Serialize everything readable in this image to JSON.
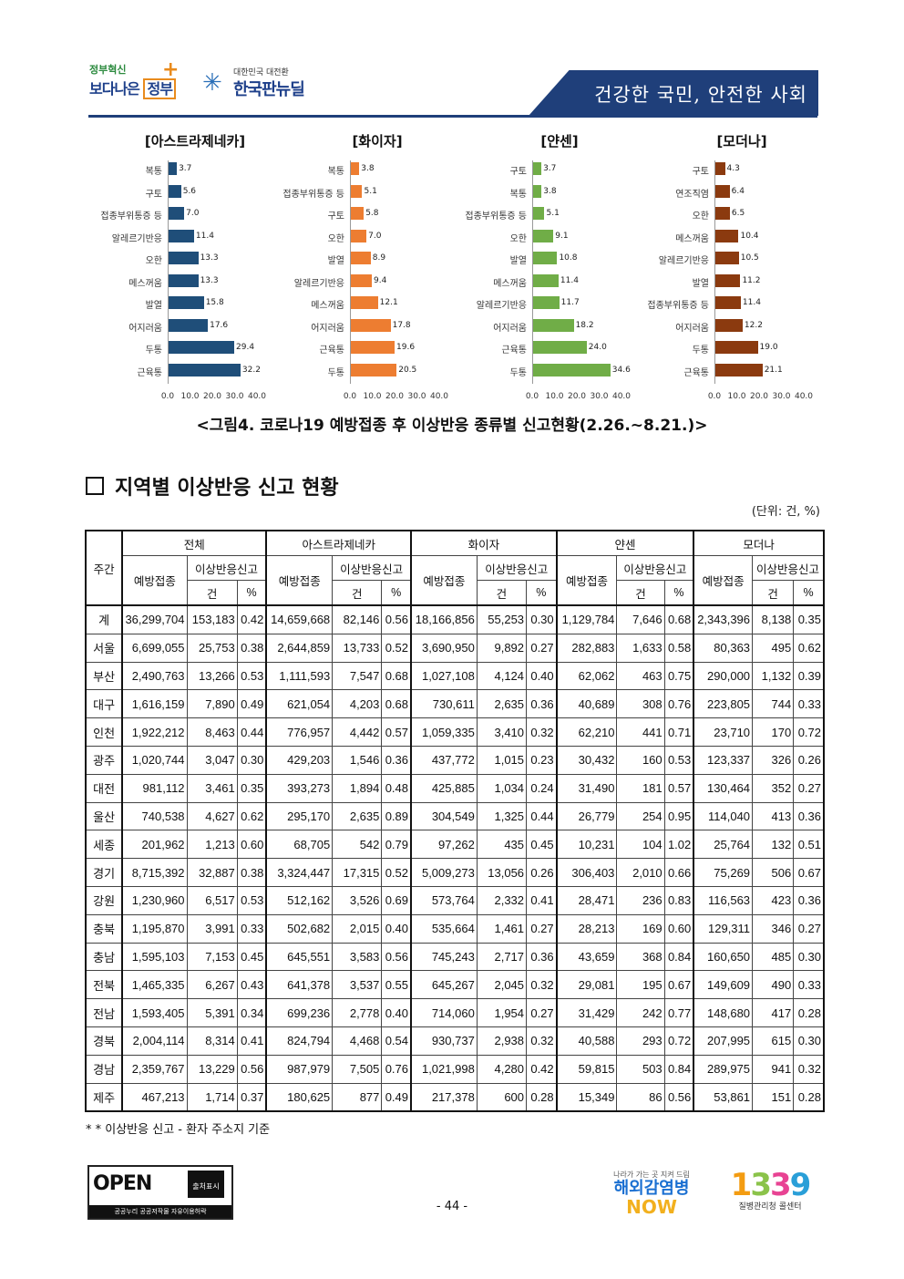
{
  "header": {
    "logo1_line1": "정부혁신",
    "logo1_line2a": "보다나은",
    "logo1_line2b": "정부",
    "logo2_line1": "대한민국 대전환",
    "logo2_line2": "한국판뉴딜",
    "banner": "건강한 국민, 안전한 사회"
  },
  "chart_data": [
    {
      "type": "bar",
      "title": "[아스트라제네카]",
      "color": "#1f4e79",
      "categories": [
        "복통",
        "구토",
        "접종부위통증 등",
        "알레르기반응",
        "오한",
        "메스꺼움",
        "발열",
        "어지러움",
        "두통",
        "근육통"
      ],
      "values": [
        3.7,
        5.6,
        7.0,
        11.4,
        13.3,
        13.3,
        15.8,
        17.6,
        29.4,
        32.2
      ],
      "value_labels": [
        "3.7",
        "5.6",
        "7.0",
        "11.4",
        "13.3",
        "13.3",
        "15.8",
        "17.6",
        "29.4",
        "32.2"
      ],
      "xlim": [
        0,
        40
      ],
      "xticks": [
        "0.0",
        "10.0",
        "20.0",
        "30.0",
        "40.0"
      ]
    },
    {
      "type": "bar",
      "title": "[화이자]",
      "color": "#ed7d31",
      "categories": [
        "복통",
        "접종부위통증 등",
        "구토",
        "오한",
        "발열",
        "알레르기반응",
        "메스꺼움",
        "어지러움",
        "근육통",
        "두통"
      ],
      "values": [
        3.8,
        5.1,
        5.8,
        7.0,
        8.9,
        9.4,
        12.1,
        17.8,
        19.6,
        20.5
      ],
      "value_labels": [
        "3.8",
        "5.1",
        "5.8",
        "7.0",
        "8.9",
        "9.4",
        "12.1",
        "17.8",
        "19.6",
        "20.5"
      ],
      "xlim": [
        0,
        40
      ],
      "xticks": [
        "0.0",
        "10.0",
        "20.0",
        "30.0",
        "40.0"
      ]
    },
    {
      "type": "bar",
      "title": "[얀센]",
      "color": "#70ad47",
      "categories": [
        "구토",
        "복통",
        "접종부위통증 등",
        "오한",
        "발열",
        "메스꺼움",
        "알레르기반응",
        "어지러움",
        "근육통",
        "두통"
      ],
      "values": [
        3.7,
        3.8,
        5.1,
        9.1,
        10.8,
        11.4,
        11.7,
        18.2,
        24.0,
        34.6
      ],
      "value_labels": [
        "3.7",
        "3.8",
        "5.1",
        "9.1",
        "10.8",
        "11.4",
        "11.7",
        "18.2",
        "24.0",
        "34.6"
      ],
      "xlim": [
        0,
        40
      ],
      "xticks": [
        "0.0",
        "10.0",
        "20.0",
        "30.0",
        "40.0"
      ]
    },
    {
      "type": "bar",
      "title": "[모더나]",
      "color": "#8b3a0f",
      "categories": [
        "구토",
        "연조직염",
        "오한",
        "메스꺼움",
        "알레르기반응",
        "발열",
        "접종부위통증 등",
        "어지러움",
        "두통",
        "근육통"
      ],
      "values": [
        4.3,
        6.4,
        6.5,
        10.4,
        10.5,
        11.2,
        11.4,
        12.2,
        19.0,
        21.1
      ],
      "value_labels": [
        "4.3",
        "6.4",
        "6.5",
        "10.4",
        "10.5",
        "11.2",
        "11.4",
        "12.2",
        "19.0",
        "21.1"
      ],
      "xlim": [
        0,
        40
      ],
      "xticks": [
        "0.0",
        "10.0",
        "20.0",
        "30.0",
        "40.0"
      ]
    }
  ],
  "figure_caption": "<그림4. 코로나19 예방접종 후 이상반응 종류별 신고현황(2.26.~8.21.)>",
  "section_title": "지역별 이상반응 신고 현황",
  "unit": "(단위: 건, %)",
  "table": {
    "corner": "주간",
    "groups": [
      "전체",
      "아스트라제네카",
      "화이자",
      "얀센",
      "모더나"
    ],
    "sub_vacc": "예방접종",
    "sub_report": "이상반응신고",
    "sub_count": "건",
    "sub_pct": "%",
    "rows": [
      [
        "계",
        "36,299,704",
        "153,183",
        "0.42",
        "14,659,668",
        "82,146",
        "0.56",
        "18,166,856",
        "55,253",
        "0.30",
        "1,129,784",
        "7,646",
        "0.68",
        "2,343,396",
        "8,138",
        "0.35"
      ],
      [
        "서울",
        "6,699,055",
        "25,753",
        "0.38",
        "2,644,859",
        "13,733",
        "0.52",
        "3,690,950",
        "9,892",
        "0.27",
        "282,883",
        "1,633",
        "0.58",
        "80,363",
        "495",
        "0.62"
      ],
      [
        "부산",
        "2,490,763",
        "13,266",
        "0.53",
        "1,111,593",
        "7,547",
        "0.68",
        "1,027,108",
        "4,124",
        "0.40",
        "62,062",
        "463",
        "0.75",
        "290,000",
        "1,132",
        "0.39"
      ],
      [
        "대구",
        "1,616,159",
        "7,890",
        "0.49",
        "621,054",
        "4,203",
        "0.68",
        "730,611",
        "2,635",
        "0.36",
        "40,689",
        "308",
        "0.76",
        "223,805",
        "744",
        "0.33"
      ],
      [
        "인천",
        "1,922,212",
        "8,463",
        "0.44",
        "776,957",
        "4,442",
        "0.57",
        "1,059,335",
        "3,410",
        "0.32",
        "62,210",
        "441",
        "0.71",
        "23,710",
        "170",
        "0.72"
      ],
      [
        "광주",
        "1,020,744",
        "3,047",
        "0.30",
        "429,203",
        "1,546",
        "0.36",
        "437,772",
        "1,015",
        "0.23",
        "30,432",
        "160",
        "0.53",
        "123,337",
        "326",
        "0.26"
      ],
      [
        "대전",
        "981,112",
        "3,461",
        "0.35",
        "393,273",
        "1,894",
        "0.48",
        "425,885",
        "1,034",
        "0.24",
        "31,490",
        "181",
        "0.57",
        "130,464",
        "352",
        "0.27"
      ],
      [
        "울산",
        "740,538",
        "4,627",
        "0.62",
        "295,170",
        "2,635",
        "0.89",
        "304,549",
        "1,325",
        "0.44",
        "26,779",
        "254",
        "0.95",
        "114,040",
        "413",
        "0.36"
      ],
      [
        "세종",
        "201,962",
        "1,213",
        "0.60",
        "68,705",
        "542",
        "0.79",
        "97,262",
        "435",
        "0.45",
        "10,231",
        "104",
        "1.02",
        "25,764",
        "132",
        "0.51"
      ],
      [
        "경기",
        "8,715,392",
        "32,887",
        "0.38",
        "3,324,447",
        "17,315",
        "0.52",
        "5,009,273",
        "13,056",
        "0.26",
        "306,403",
        "2,010",
        "0.66",
        "75,269",
        "506",
        "0.67"
      ],
      [
        "강원",
        "1,230,960",
        "6,517",
        "0.53",
        "512,162",
        "3,526",
        "0.69",
        "573,764",
        "2,332",
        "0.41",
        "28,471",
        "236",
        "0.83",
        "116,563",
        "423",
        "0.36"
      ],
      [
        "충북",
        "1,195,870",
        "3,991",
        "0.33",
        "502,682",
        "2,015",
        "0.40",
        "535,664",
        "1,461",
        "0.27",
        "28,213",
        "169",
        "0.60",
        "129,311",
        "346",
        "0.27"
      ],
      [
        "충남",
        "1,595,103",
        "7,153",
        "0.45",
        "645,551",
        "3,583",
        "0.56",
        "745,243",
        "2,717",
        "0.36",
        "43,659",
        "368",
        "0.84",
        "160,650",
        "485",
        "0.30"
      ],
      [
        "전북",
        "1,465,335",
        "6,267",
        "0.43",
        "641,378",
        "3,537",
        "0.55",
        "645,267",
        "2,045",
        "0.32",
        "29,081",
        "195",
        "0.67",
        "149,609",
        "490",
        "0.33"
      ],
      [
        "전남",
        "1,593,405",
        "5,391",
        "0.34",
        "699,236",
        "2,778",
        "0.40",
        "714,060",
        "1,954",
        "0.27",
        "31,429",
        "242",
        "0.77",
        "148,680",
        "417",
        "0.28"
      ],
      [
        "경북",
        "2,004,114",
        "8,314",
        "0.41",
        "824,794",
        "4,468",
        "0.54",
        "930,737",
        "2,938",
        "0.32",
        "40,588",
        "293",
        "0.72",
        "207,995",
        "615",
        "0.30"
      ],
      [
        "경남",
        "2,359,767",
        "13,229",
        "0.56",
        "987,979",
        "7,505",
        "0.76",
        "1,021,998",
        "4,280",
        "0.42",
        "59,815",
        "503",
        "0.84",
        "289,975",
        "941",
        "0.32"
      ],
      [
        "제주",
        "467,213",
        "1,714",
        "0.37",
        "180,625",
        "877",
        "0.49",
        "217,378",
        "600",
        "0.28",
        "15,349",
        "86",
        "0.56",
        "53,861",
        "151",
        "0.28"
      ]
    ]
  },
  "note": "* * 이상반응 신고 - 환자 주소지 기준",
  "footer": {
    "open_text": "OPEN",
    "open_badge": "출처표시",
    "open_caption": "공공누리  공공저작물 자유이용허락",
    "page_number": "- 44 -",
    "now_small": "나라가 가는 곳 지켜 드림",
    "now_line1": "해외감염병",
    "now_line2": "NOW",
    "c1339_d1": "1",
    "c1339_d2": "3",
    "c1339_d3": "3",
    "c1339_d4": "9",
    "c1339_caption": "질병관리청 콜센터"
  }
}
